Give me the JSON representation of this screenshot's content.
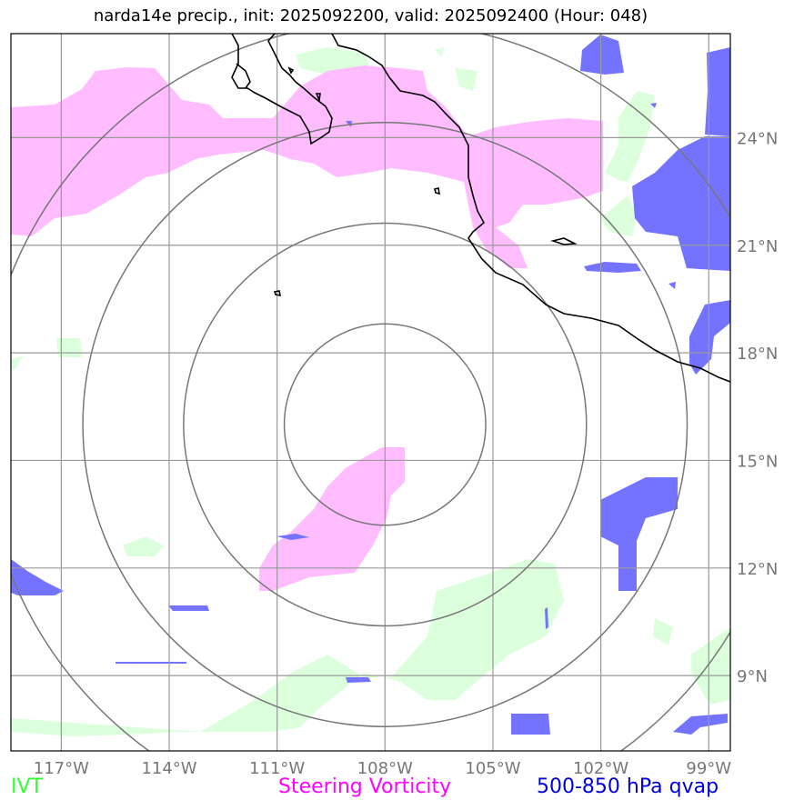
{
  "title": "narda14e precip., init: 2025092200, valid: 2025092400 (Hour: 048)",
  "axes": {
    "lon_ticks": [
      "117°W",
      "114°W",
      "111°W",
      "108°W",
      "105°W",
      "102°W",
      "99°W"
    ],
    "lat_ticks": [
      "24°N",
      "21°N",
      "18°N",
      "15°N",
      "12°N",
      "9°N"
    ],
    "lon_range": [
      -118.4,
      -98.4
    ],
    "lat_range": [
      6.9,
      26.9
    ]
  },
  "storm_center": {
    "lon": -108.0,
    "lat": 16.0
  },
  "range_rings_deg": [
    2.8,
    5.6,
    8.4,
    11.2
  ],
  "legend": [
    {
      "label": "IVT",
      "color": "#33ff33"
    },
    {
      "label": "Steering Vorticity",
      "color": "#ff00ff"
    },
    {
      "label": "500-850 hPa qvap",
      "color": "#0000dd"
    }
  ],
  "colors": {
    "ivt_fill": "#dcffdc",
    "vort_fill": "#ffbcff",
    "qvap_fill": "#7373ff",
    "grid": "#999999",
    "rings": "#777777",
    "coast": "#000000",
    "tick_text": "#777777"
  }
}
